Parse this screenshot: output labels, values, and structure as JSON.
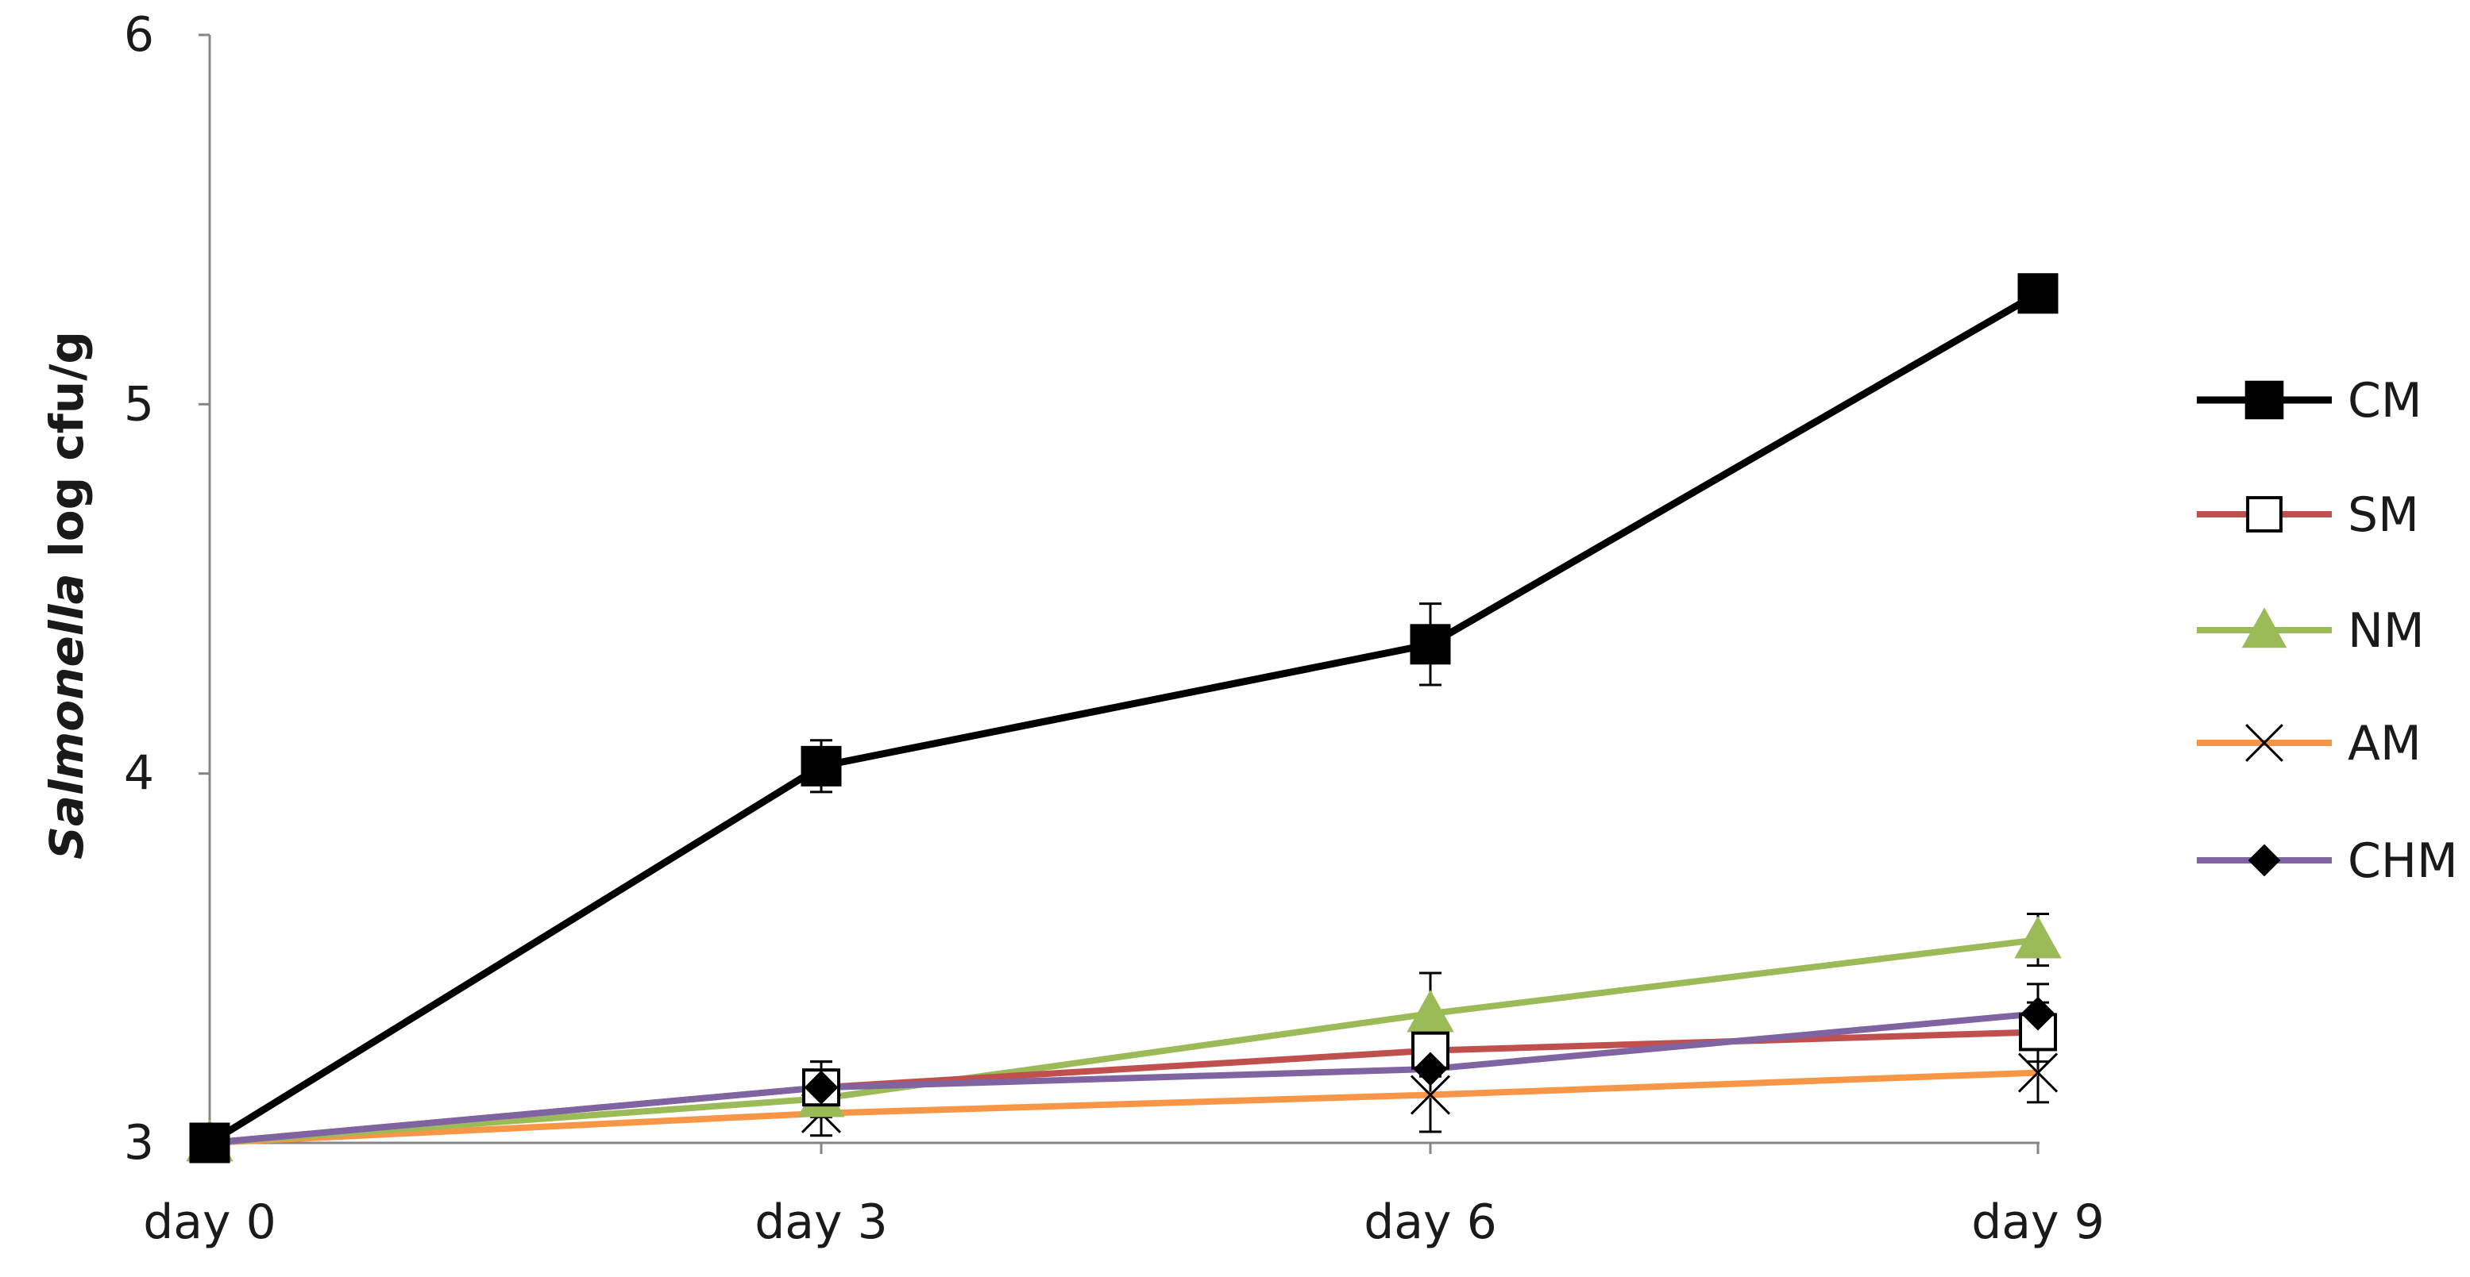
{
  "chart_data": {
    "type": "line",
    "title": "",
    "xlabel": "",
    "ylabel_italic": "Salmonella",
    "ylabel_rest": " log cfu/g",
    "categories": [
      "day 0",
      "day 3",
      "day 6",
      "day 9"
    ],
    "ylim": [
      3,
      6
    ],
    "yticks": [
      "3",
      "4",
      "5",
      "6"
    ],
    "grid": false,
    "legend_position": "right",
    "series": [
      {
        "name": "CM",
        "color": "#000000",
        "marker": "square-filled",
        "values": [
          3.0,
          4.02,
          4.35,
          5.3
        ],
        "errors": [
          0.0,
          0.07,
          0.11,
          0.03
        ]
      },
      {
        "name": "SM",
        "color": "#C0504D",
        "marker": "square-open",
        "values": [
          3.0,
          3.15,
          3.25,
          3.3
        ],
        "errors": [
          0.0,
          0.07,
          0.07,
          0.08
        ]
      },
      {
        "name": "NM",
        "color": "#9BBB59",
        "marker": "triangle",
        "values": [
          3.0,
          3.12,
          3.35,
          3.55
        ],
        "errors": [
          0.0,
          0.05,
          0.11,
          0.07
        ]
      },
      {
        "name": "AM",
        "color": "#F79646",
        "marker": "x",
        "values": [
          3.0,
          3.08,
          3.13,
          3.19
        ],
        "errors": [
          0.0,
          0.06,
          0.1,
          0.08
        ]
      },
      {
        "name": "CHM",
        "color": "#8064A2",
        "marker": "diamond",
        "values": [
          3.0,
          3.15,
          3.2,
          3.35
        ],
        "errors": [
          0.0,
          0.07,
          0.07,
          0.08
        ]
      }
    ]
  }
}
